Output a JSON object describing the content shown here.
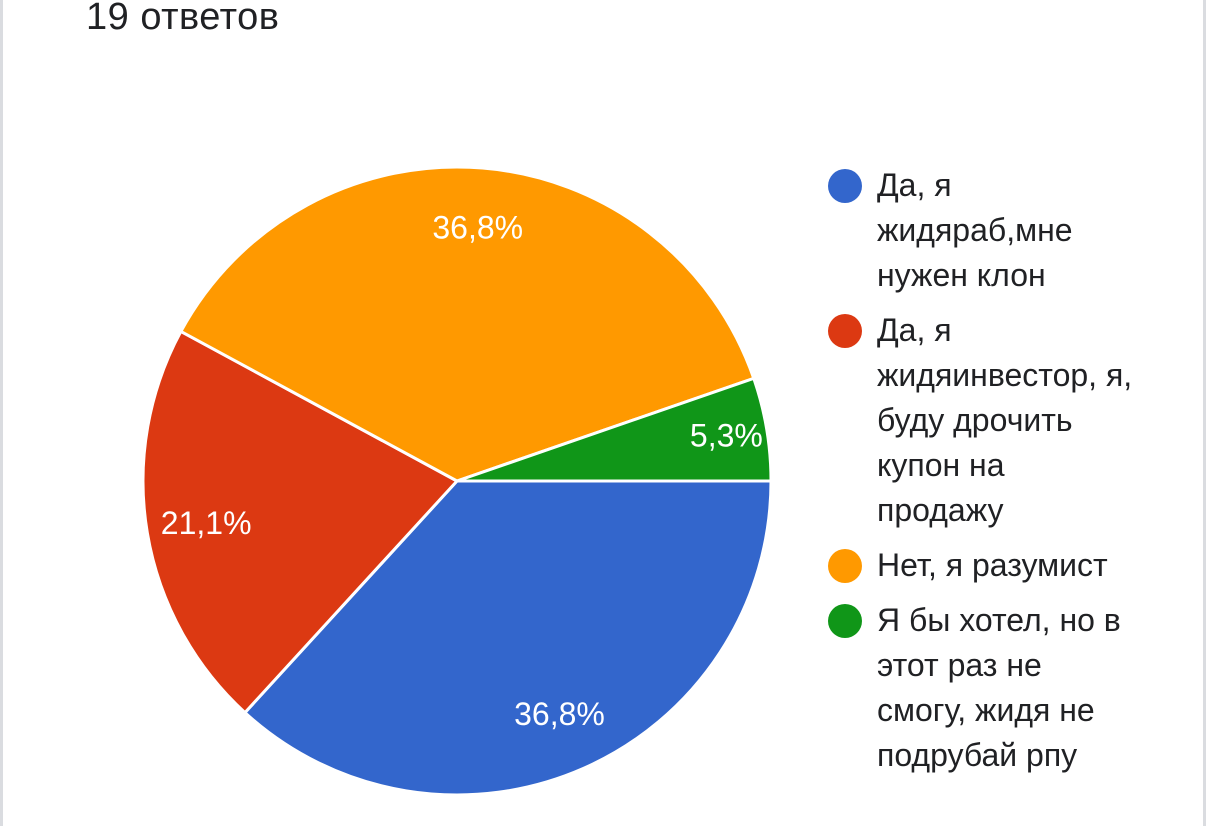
{
  "response_count": "19 ответов",
  "colors": {
    "blue": "#3366cc",
    "red": "#dc3912",
    "orange": "#ff9900",
    "green": "#109618"
  },
  "chart_data": {
    "type": "pie",
    "legend_position": "right",
    "slices": [
      {
        "label": "Да, я жидяраб,мне нужен клон",
        "value": 36.8,
        "display": "36,8%",
        "color": "#3366cc"
      },
      {
        "label": "Да, я жидяинвестор, я, буду дрочить купон на продажу",
        "value": 21.1,
        "display": "21,1%",
        "color": "#dc3912"
      },
      {
        "label": "Нет, я разумист",
        "value": 36.8,
        "display": "36,8%",
        "color": "#ff9900"
      },
      {
        "label": "Я бы хотел, но в этот раз не смогу, жидя не подрубай рпу",
        "value": 5.3,
        "display": "5,3%",
        "color": "#109618"
      }
    ]
  },
  "legend": {
    "items": [
      {
        "lines": [
          "Да, я",
          "жидяраб,мне",
          "нужен клон"
        ],
        "color": "#3366cc"
      },
      {
        "lines": [
          "Да, я",
          "жидяинвестор, я,",
          "буду дрочить",
          "купон на",
          "продажу"
        ],
        "color": "#dc3912"
      },
      {
        "lines": [
          "Нет, я разумист"
        ],
        "color": "#ff9900"
      },
      {
        "lines": [
          "Я бы хотел, но в",
          "этот раз не",
          "смогу, жидя не",
          "подрубай рпу"
        ],
        "color": "#109618"
      }
    ]
  }
}
